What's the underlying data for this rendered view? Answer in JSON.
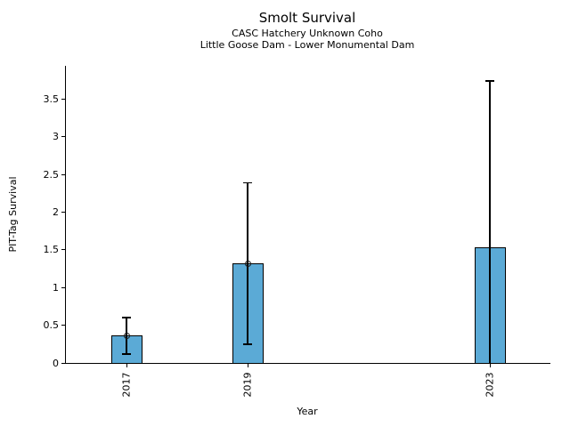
{
  "chart_data": {
    "type": "bar",
    "title": "Smolt Survival",
    "subtitle1": "CASC Hatchery Unknown Coho",
    "subtitle2": "Little Goose Dam - Lower Monumental Dam",
    "xlabel": "Year",
    "ylabel": "PIT-Tag Survival",
    "categories": [
      2017,
      2019,
      2023
    ],
    "values": [
      0.36,
      1.32,
      1.53
    ],
    "error_low": [
      0.12,
      0.25,
      0.0
    ],
    "error_high": [
      0.6,
      2.39,
      3.74
    ],
    "point_markers": [
      true,
      true,
      false
    ],
    "yticks": [
      0,
      0.5,
      1,
      1.5,
      2,
      2.5,
      3,
      3.5
    ],
    "ylim": [
      0,
      3.94
    ],
    "xlim": [
      2016,
      2024
    ],
    "legend": "none",
    "grid": false,
    "bar_color": "#5baad6",
    "bar_edge_color": "#000000",
    "error_color": "#000000",
    "text_color": "#000000"
  }
}
